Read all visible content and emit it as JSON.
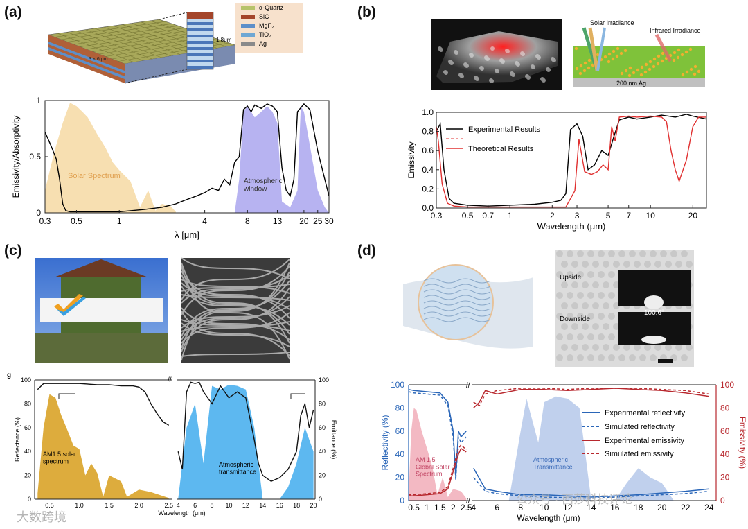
{
  "panels": {
    "a": {
      "label": "(a)",
      "legend": [
        "α-Quartz",
        "SiC",
        "MgF₂",
        "TiO₂",
        "Ag"
      ],
      "legend_colors": [
        "#b7c36a",
        "#a4452a",
        "#5d8fc9",
        "#6fa7d3",
        "#8a8a8a"
      ],
      "stack_height": "1.8μm",
      "period": "3 × 6 μm",
      "chart_data": {
        "type": "line",
        "xlabel": "λ [μm]",
        "ylabel": "Emissivity/Absorptivity",
        "xscale": "log",
        "xlim": [
          0.3,
          30
        ],
        "ylim": [
          0,
          1
        ],
        "xticks": [
          "0.3",
          "0.5",
          "1",
          "4",
          "8",
          "13",
          "20",
          "25",
          "30"
        ],
        "xtick_values": [
          0.3,
          0.5,
          1,
          4,
          8,
          13,
          20,
          25,
          30
        ],
        "yticks": [
          "0",
          "0.5",
          "1"
        ],
        "ytick_values": [
          0,
          0.5,
          1
        ],
        "annotations": [
          "Solar Spectrum",
          "Atmospheric\nwindow"
        ],
        "series": [
          {
            "name": "Emissivity",
            "x": [
              0.3,
              0.33,
              0.36,
              0.38,
              0.4,
              0.42,
              0.45,
              0.5,
              0.7,
              1.0,
              1.5,
              2.0,
              2.5,
              3.0,
              3.5,
              4.0,
              4.5,
              5.0,
              5.5,
              6.0,
              6.5,
              7.0,
              7.5,
              8.0,
              8.5,
              9.0,
              10.0,
              11.0,
              12.0,
              13.0,
              14.0,
              15.0,
              16.0,
              17.0,
              18.0,
              20.0,
              22.0,
              25.0,
              30.0
            ],
            "y": [
              0.72,
              0.6,
              0.48,
              0.3,
              0.08,
              0.02,
              0.01,
              0.01,
              0.01,
              0.01,
              0.03,
              0.05,
              0.08,
              0.12,
              0.15,
              0.18,
              0.22,
              0.2,
              0.3,
              0.25,
              0.45,
              0.5,
              0.92,
              0.95,
              0.9,
              0.96,
              0.93,
              0.97,
              0.95,
              0.9,
              0.4,
              0.2,
              0.15,
              0.3,
              0.9,
              0.97,
              0.92,
              0.55,
              0.15
            ]
          },
          {
            "name": "Solar Spectrum",
            "x": [
              0.3,
              0.35,
              0.4,
              0.45,
              0.5,
              0.55,
              0.6,
              0.7,
              0.8,
              0.9,
              1.0,
              1.2,
              1.4,
              1.6,
              1.8,
              2.0,
              2.3,
              2.5
            ],
            "y": [
              0.2,
              0.55,
              0.8,
              0.98,
              0.95,
              0.9,
              0.85,
              0.7,
              0.58,
              0.45,
              0.38,
              0.28,
              0.05,
              0.2,
              0.02,
              0.08,
              0.06,
              0.01
            ]
          },
          {
            "name": "Atmospheric window",
            "x": [
              6.5,
              7.0,
              7.5,
              8.0,
              9.0,
              10.0,
              11.0,
              12.0,
              13.0,
              14.0,
              16.0,
              18.0,
              19.0,
              20.0,
              22.0,
              25.0,
              28.0,
              30.0
            ],
            "y": [
              0.0,
              0.3,
              0.9,
              0.95,
              0.85,
              0.9,
              0.95,
              0.9,
              0.8,
              0.1,
              0.05,
              0.2,
              0.95,
              0.9,
              0.6,
              0.2,
              0.05,
              0.0
            ]
          }
        ]
      }
    },
    "b": {
      "label": "(b)",
      "diagram_labels": [
        "Solar Irradiance",
        "Infrared Irradiance",
        "200 nm  Ag"
      ],
      "chart_data": {
        "type": "line",
        "xlabel": "Wavelength (μm)",
        "ylabel": "Emissivity",
        "xscale": "log",
        "xlim": [
          0.3,
          25
        ],
        "ylim": [
          0,
          1
        ],
        "xticks": [
          "0.3",
          "0.5",
          "0.7",
          "1",
          "2",
          "3",
          "5",
          "7",
          "10",
          "20"
        ],
        "xtick_values": [
          0.3,
          0.5,
          0.7,
          1,
          2,
          3,
          5,
          7,
          10,
          20
        ],
        "yticks": [
          "0.0",
          "0.2",
          "0.4",
          "0.6",
          "0.8",
          "1.0"
        ],
        "ytick_values": [
          0,
          0.2,
          0.4,
          0.6,
          0.8,
          1.0
        ],
        "legend": [
          "Experimental Results",
          "Theoretical Results"
        ],
        "series": [
          {
            "name": "Experimental Results",
            "x": [
              0.3,
              0.32,
              0.34,
              0.37,
              0.4,
              0.5,
              0.7,
              1.0,
              1.5,
              2.0,
              2.3,
              2.5,
              2.7,
              3.0,
              3.3,
              3.6,
              4.0,
              4.5,
              5.0,
              5.5,
              6.0,
              7.0,
              8.0,
              10.0,
              12.0,
              15.0,
              18.0,
              20.0,
              25.0
            ],
            "y": [
              0.8,
              0.88,
              0.4,
              0.1,
              0.05,
              0.03,
              0.02,
              0.03,
              0.04,
              0.06,
              0.08,
              0.15,
              0.82,
              0.88,
              0.75,
              0.4,
              0.45,
              0.6,
              0.55,
              0.75,
              0.92,
              0.95,
              0.93,
              0.95,
              0.97,
              0.95,
              0.98,
              0.96,
              0.93
            ]
          },
          {
            "name": "Theoretical Results",
            "x": [
              0.3,
              0.31,
              0.33,
              0.36,
              0.4,
              0.5,
              0.7,
              1.0,
              1.5,
              2.0,
              2.5,
              2.9,
              3.1,
              3.4,
              3.8,
              4.2,
              4.6,
              5.0,
              5.3,
              5.6,
              6.0,
              7.0,
              8.0,
              10.0,
              12.0,
              13.0,
              14.0,
              15.0,
              16.0,
              18.0,
              20.0,
              22.0,
              25.0
            ],
            "y": [
              0.85,
              0.7,
              0.25,
              0.05,
              0.02,
              0.01,
              0.01,
              0.01,
              0.01,
              0.01,
              0.01,
              0.18,
              0.72,
              0.38,
              0.35,
              0.38,
              0.45,
              0.4,
              0.85,
              0.7,
              0.95,
              0.96,
              0.95,
              0.96,
              0.95,
              0.9,
              0.6,
              0.4,
              0.28,
              0.5,
              0.85,
              0.95,
              0.95
            ]
          }
        ]
      }
    },
    "c": {
      "label": "(c)",
      "chart_data": {
        "type": "line",
        "xlabel": "Wavelength (μm)",
        "ylabel_left": "Reflectance (%)",
        "ylabel_right": "Emittance (%)",
        "panel_letter": "g",
        "xticks_left": [
          "0.5",
          "1.0",
          "1.5",
          "2.0",
          "2.5"
        ],
        "xtick_values_left": [
          0.5,
          1.0,
          1.5,
          2.0,
          2.5
        ],
        "xticks_right": [
          "4",
          "6",
          "8",
          "10",
          "12",
          "14",
          "16",
          "18",
          "20"
        ],
        "xtick_values_right": [
          4,
          6,
          8,
          10,
          12,
          14,
          16,
          18,
          20
        ],
        "yticks": [
          "0",
          "20",
          "40",
          "60",
          "80",
          "100"
        ],
        "ytick_values": [
          0,
          20,
          40,
          60,
          80,
          100
        ],
        "annotations": [
          "AM1.5 solar\nspectrum",
          "Atmospheric\ntransmittance"
        ],
        "series": [
          {
            "name": "Reflectance",
            "x": [
              0.3,
              0.4,
              0.5,
              0.7,
              1.0,
              1.3,
              1.5,
              1.7,
              1.9,
              2.0,
              2.1,
              2.2,
              2.3,
              2.4,
              2.5
            ],
            "y": [
              92,
              97,
              97,
              97,
              97,
              96,
              96,
              95,
              95,
              94,
              90,
              80,
              72,
              65,
              62
            ]
          },
          {
            "name": "Emittance",
            "x": [
              4.0,
              4.5,
              5.0,
              5.5,
              6.0,
              6.5,
              7.0,
              8.0,
              9.0,
              10.0,
              11.0,
              12.0,
              13.0,
              13.5,
              14.0,
              15.0,
              16.0,
              17.0,
              18.0,
              18.5,
              19.0,
              19.5,
              20.0
            ],
            "y": [
              40,
              25,
              90,
              98,
              97,
              98,
              90,
              80,
              95,
              85,
              90,
              85,
              50,
              30,
              20,
              15,
              18,
              25,
              40,
              70,
              80,
              60,
              75
            ]
          },
          {
            "name": "AM1.5 solar spectrum",
            "x": [
              0.3,
              0.4,
              0.5,
              0.6,
              0.7,
              0.8,
              0.9,
              1.0,
              1.1,
              1.2,
              1.3,
              1.4,
              1.5,
              1.7,
              1.8,
              2.0,
              2.2,
              2.5
            ],
            "y": [
              5,
              60,
              88,
              85,
              70,
              58,
              45,
              42,
              20,
              30,
              22,
              2,
              20,
              15,
              2,
              8,
              6,
              1
            ]
          },
          {
            "name": "Atmospheric transmittance",
            "x": [
              4.0,
              5.0,
              6.0,
              7.0,
              8.0,
              9.0,
              10.0,
              11.0,
              12.0,
              13.0,
              14.0,
              16.0,
              17.0,
              18.0,
              19.0,
              20.0
            ],
            "y": [
              0,
              60,
              80,
              30,
              95,
              92,
              96,
              95,
              92,
              60,
              0,
              0,
              10,
              30,
              60,
              40
            ]
          }
        ]
      }
    },
    "d": {
      "label": "(d)",
      "photo_labels": [
        "Upside",
        "Downside",
        "100.6°"
      ],
      "chart_data": {
        "type": "line",
        "xlabel": "Wavelength (μm)",
        "ylabel_left": "Reflectivity (%)",
        "ylabel_right": "Emissivity (%)",
        "xticks_left": [
          "0.5",
          "1",
          "1.5",
          "2",
          "2.5"
        ],
        "xtick_values_left": [
          0.5,
          1.0,
          1.5,
          2.0,
          2.5
        ],
        "xticks_right": [
          "4",
          "6",
          "8",
          "10",
          "12",
          "14",
          "16",
          "18",
          "20",
          "22",
          "24"
        ],
        "xtick_values_right": [
          4,
          6,
          8,
          10,
          12,
          14,
          16,
          18,
          20,
          22,
          24
        ],
        "yticks": [
          "0",
          "20",
          "40",
          "60",
          "80",
          "100"
        ],
        "ytick_values": [
          0,
          20,
          40,
          60,
          80,
          100
        ],
        "legend": [
          "Experimental reflectivity",
          "Simulated reflectivity",
          "Experimental emissivity",
          "Simulated emissivity"
        ],
        "annotations": [
          "AM 1.5\nGlobal Solar\nSpectrum",
          "Atmospheric\nTransmittance"
        ],
        "series": [
          {
            "name": "Experimental reflectivity",
            "x": [
              0.3,
              0.5,
              1.0,
              1.5,
              1.8,
              2.0,
              2.1,
              2.2,
              2.3,
              2.5,
              4.0,
              5.0,
              6.0,
              8.0,
              10.0,
              14.0,
              18.0,
              22.0,
              24.0
            ],
            "y": [
              96,
              95,
              94,
              93,
              85,
              60,
              20,
              60,
              55,
              60,
              28,
              10,
              8,
              5,
              5,
              3,
              5,
              8,
              10
            ]
          },
          {
            "name": "Simulated reflectivity",
            "x": [
              0.3,
              0.5,
              1.0,
              1.5,
              1.8,
              2.0,
              2.1,
              2.2,
              2.3,
              2.5,
              4.0,
              5.0,
              6.0,
              8.0,
              10.0,
              14.0,
              18.0,
              22.0,
              24.0
            ],
            "y": [
              94,
              93,
              92,
              91,
              82,
              55,
              18,
              55,
              50,
              55,
              20,
              8,
              6,
              4,
              3,
              2,
              4,
              6,
              8
            ]
          },
          {
            "name": "Experimental emissivity",
            "x": [
              0.3,
              0.5,
              1.0,
              1.5,
              1.8,
              2.0,
              2.2,
              2.3,
              2.5,
              4.0,
              4.5,
              5.0,
              6.0,
              8.0,
              10.0,
              12.0,
              14.0,
              16.0,
              18.0,
              20.0,
              22.0,
              24.0
            ],
            "y": [
              4,
              4,
              5,
              6,
              10,
              25,
              40,
              45,
              42,
              80,
              85,
              95,
              92,
              96,
              96,
              95,
              96,
              97,
              96,
              95,
              93,
              90
            ]
          },
          {
            "name": "Simulated emissivity",
            "x": [
              0.3,
              0.5,
              1.0,
              1.5,
              1.8,
              2.0,
              2.2,
              2.3,
              2.5,
              4.0,
              4.5,
              5.0,
              6.0,
              8.0,
              10.0,
              12.0,
              14.0,
              16.0,
              18.0,
              20.0,
              22.0,
              24.0
            ],
            "y": [
              5,
              5,
              6,
              7,
              12,
              28,
              45,
              48,
              44,
              85,
              82,
              92,
              95,
              97,
              97,
              96,
              97,
              97,
              97,
              96,
              95,
              92
            ]
          },
          {
            "name": "AM 1.5 Global Solar Spectrum",
            "x": [
              0.3,
              0.4,
              0.5,
              0.6,
              0.8,
              1.0,
              1.2,
              1.4,
              1.6,
              1.8,
              2.0,
              2.3,
              2.5
            ],
            "y": [
              5,
              60,
              80,
              78,
              60,
              45,
              30,
              5,
              20,
              3,
              10,
              8,
              2
            ]
          },
          {
            "name": "Atmospheric Transmittance",
            "x": [
              7.0,
              8.0,
              8.5,
              9.5,
              10.0,
              11.0,
              12.0,
              13.0,
              14.0,
              16.0,
              17.0,
              18.0,
              19.0,
              20.0,
              21.0
            ],
            "y": [
              0,
              60,
              88,
              50,
              85,
              90,
              88,
              80,
              0,
              0,
              15,
              28,
              20,
              15,
              0
            ]
          }
        ]
      }
    }
  },
  "watermark": {
    "left": "大数跨境",
    "right": "公众号 · 西莎科技评论"
  }
}
